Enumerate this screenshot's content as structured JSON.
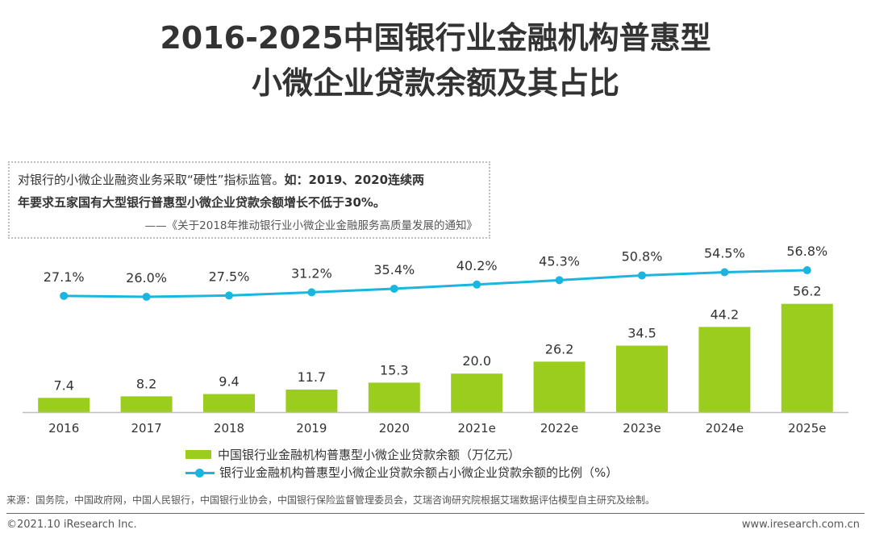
{
  "title": {
    "line1": "2016-2025中国银行业金融机构普惠型",
    "line2": "小微企业贷款余额及其占比"
  },
  "note": {
    "line1_regular": "对银行的小微企业融资业务采取“硬性”指标监管。",
    "line1_bold": "如：2019、2020连续两",
    "line2": "年要求五家国有大型银行普惠型小微企业贷款余额增长不低于30%。",
    "line3": "——《关于2018年推动银行业小微企业金融服务高质量发展的通知》"
  },
  "legend": {
    "bar": "中国银行业金融机构普惠型小微企业贷款余额（万亿元）",
    "line": "银行业金融机构普惠型小微企业贷款余额占小微企业贷款余额的比例（%）"
  },
  "source": "来源：国务院，中国政府网，中国人民银行，中国银行业协会，中国银行保险监督管理委员会，艾瑞咨询研究院根据艾瑞数据评估模型自主研究及绘制。",
  "footer": {
    "left": "©2021.10 iResearch Inc.",
    "right": "www.iresearch.com.cn"
  },
  "colors": {
    "bar": "#9acd1e",
    "line": "#1ab6e0",
    "axis": "#bfbfbf"
  },
  "chart_data": {
    "type": "bar",
    "categories": [
      "2016",
      "2017",
      "2018",
      "2019",
      "2020",
      "2021e",
      "2022e",
      "2023e",
      "2024e",
      "2025e"
    ],
    "series": [
      {
        "name": "中国银行业金融机构普惠型小微企业贷款余额（万亿元）",
        "type": "bar",
        "values": [
          7.4,
          8.2,
          9.4,
          11.7,
          15.3,
          20.0,
          26.2,
          34.5,
          44.2,
          56.2
        ],
        "labels": [
          "7.4",
          "8.2",
          "9.4",
          "11.7",
          "15.3",
          "20.0",
          "26.2",
          "34.5",
          "44.2",
          "56.2"
        ]
      },
      {
        "name": "银行业金融机构普惠型小微企业贷款余额占小微企业贷款余额的比例（%）",
        "type": "line",
        "values": [
          27.1,
          26.0,
          27.5,
          31.2,
          35.4,
          40.2,
          45.3,
          50.8,
          54.5,
          56.8
        ],
        "labels": [
          "27.1%",
          "26.0%",
          "27.5%",
          "31.2%",
          "35.4%",
          "40.2%",
          "45.3%",
          "50.8%",
          "54.5%",
          "56.8%"
        ]
      }
    ],
    "ylim": [
      0,
      60
    ],
    "y2lim": [
      0,
      60
    ],
    "legend_position": "bottom",
    "grid": false
  }
}
